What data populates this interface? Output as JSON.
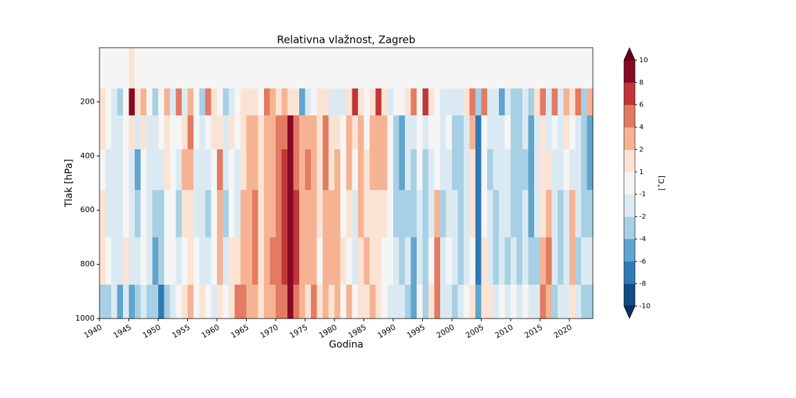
{
  "chart_data": {
    "type": "contourf",
    "title": "Relativna vlažnost, Zagreb",
    "xlabel": "Godina",
    "ylabel": "Tlak [hPa]",
    "colorbar_label": "[˚C]",
    "xlim": [
      1940,
      2024
    ],
    "xticks": [
      1940,
      1945,
      1950,
      1955,
      1960,
      1965,
      1970,
      1975,
      1980,
      1985,
      1990,
      1995,
      2000,
      2005,
      2010,
      2015,
      2020
    ],
    "ylim": [
      1000,
      0
    ],
    "yticks": [
      200,
      400,
      600,
      800,
      1000
    ],
    "levels": [
      -10,
      -8,
      -6,
      -4,
      -2,
      -1,
      1,
      2,
      4,
      6,
      8,
      10
    ],
    "colors": [
      "#134b87",
      "#2f79b5",
      "#5fa5cd",
      "#a7d0e4",
      "#dbeaf2",
      "#f5f5f5",
      "#fbe3d4",
      "#f6b393",
      "#e27b62",
      "#c13639",
      "#870a24"
    ],
    "under_color": "#0a3162",
    "over_color": "#67001f",
    "x": [
      1940,
      1941,
      1942,
      1943,
      1944,
      1945,
      1946,
      1947,
      1948,
      1949,
      1950,
      1951,
      1952,
      1953,
      1954,
      1955,
      1956,
      1957,
      1958,
      1959,
      1960,
      1961,
      1962,
      1963,
      1964,
      1965,
      1966,
      1967,
      1968,
      1969,
      1970,
      1971,
      1972,
      1973,
      1974,
      1975,
      1976,
      1977,
      1978,
      1979,
      1980,
      1981,
      1982,
      1983,
      1984,
      1985,
      1986,
      1987,
      1988,
      1989,
      1990,
      1991,
      1992,
      1993,
      1994,
      1995,
      1996,
      1997,
      1998,
      1999,
      2000,
      2001,
      2002,
      2003,
      2004,
      2005,
      2006,
      2007,
      2008,
      2009,
      2010,
      2011,
      2012,
      2013,
      2014,
      2015,
      2016,
      2017,
      2018,
      2019,
      2020,
      2021,
      2022,
      2023
    ],
    "y": [
      100,
      200,
      300,
      450,
      600,
      800,
      950
    ],
    "z": [
      [
        0,
        1.5,
        1.5,
        0,
        1.5,
        1.5,
        -3
      ],
      [
        0,
        0,
        0,
        -1.5,
        -1.5,
        0,
        -3
      ],
      [
        0,
        -1.5,
        -1.5,
        -1.5,
        -1.5,
        -1.5,
        -1.5
      ],
      [
        0,
        -3,
        -1.5,
        -1.5,
        -1.5,
        -1.5,
        -5
      ],
      [
        0,
        0,
        0,
        0,
        0,
        1.5,
        -1.5
      ],
      [
        1.5,
        9,
        1.5,
        -1.5,
        -1.5,
        -1.5,
        -5
      ],
      [
        0,
        1.5,
        -1.5,
        -5,
        -3,
        -1.5,
        -3
      ],
      [
        0,
        3,
        1.5,
        0,
        0,
        0,
        -1.5
      ],
      [
        0,
        0,
        -1.5,
        -1.5,
        -1.5,
        -1.5,
        -3
      ],
      [
        0,
        -3,
        -1.5,
        -1.5,
        -3,
        -5,
        -3
      ],
      [
        0,
        0,
        0,
        -1.5,
        -3,
        -3,
        -7
      ],
      [
        0,
        3,
        1.5,
        1.5,
        0,
        0,
        -3
      ],
      [
        0,
        -1.5,
        0,
        0,
        0,
        0,
        -1.5
      ],
      [
        0,
        5,
        0,
        -1.5,
        -3,
        -1.5,
        0
      ],
      [
        0,
        -1.5,
        1.5,
        3,
        1.5,
        0,
        1.5
      ],
      [
        0,
        3,
        5,
        3,
        1.5,
        1.5,
        3
      ],
      [
        0,
        0,
        0,
        -1.5,
        -1.5,
        0,
        0
      ],
      [
        0,
        -3,
        -1.5,
        -1.5,
        -1.5,
        -1.5,
        1.5
      ],
      [
        0,
        5,
        0,
        -1.5,
        -3,
        -1.5,
        0
      ],
      [
        0,
        1.5,
        1.5,
        0,
        0,
        0,
        -1.5
      ],
      [
        0,
        0,
        1.5,
        5,
        3,
        3,
        1.5
      ],
      [
        0,
        -3,
        -1.5,
        -1.5,
        -3,
        -1.5,
        0
      ],
      [
        0,
        -1.5,
        1.5,
        0,
        0,
        1.5,
        1.5
      ],
      [
        0,
        0,
        0,
        -1.5,
        -1.5,
        1.5,
        5
      ],
      [
        0,
        1.5,
        1.5,
        1.5,
        3,
        3,
        5
      ],
      [
        0,
        1.5,
        3,
        3,
        3,
        3,
        3
      ],
      [
        0,
        1.5,
        3,
        3,
        5,
        5,
        3
      ],
      [
        0,
        0,
        1.5,
        1.5,
        1.5,
        1.5,
        1.5
      ],
      [
        0,
        5,
        3,
        3,
        3,
        3,
        3
      ],
      [
        0,
        3,
        3,
        3,
        3,
        5,
        3
      ],
      [
        0,
        1.5,
        5,
        5,
        5,
        5,
        5
      ],
      [
        0,
        3,
        5,
        7,
        7,
        7,
        5
      ],
      [
        0,
        1.5,
        9,
        9,
        9,
        9,
        9
      ],
      [
        0,
        1.5,
        5,
        5,
        7,
        7,
        5
      ],
      [
        0,
        -5,
        3,
        3,
        3,
        3,
        3
      ],
      [
        0,
        -1.5,
        3,
        5,
        3,
        3,
        1.5
      ],
      [
        0,
        0,
        3,
        3,
        3,
        3,
        5
      ],
      [
        0,
        1.5,
        1.5,
        1.5,
        1.5,
        0,
        1.5
      ],
      [
        0,
        1.5,
        5,
        5,
        3,
        3,
        3
      ],
      [
        0,
        -1.5,
        1.5,
        1.5,
        3,
        3,
        1.5
      ],
      [
        0,
        -1.5,
        1.5,
        3,
        3,
        3,
        3
      ],
      [
        0,
        -1.5,
        0,
        0,
        0,
        1.5,
        0
      ],
      [
        0,
        1.5,
        3,
        3,
        1.5,
        0,
        3
      ],
      [
        0,
        7,
        1.5,
        0,
        -1.5,
        -1.5,
        0
      ],
      [
        0,
        1.5,
        3,
        3,
        3,
        1.5,
        1.5
      ],
      [
        0,
        0,
        0,
        1.5,
        1.5,
        3,
        1.5
      ],
      [
        0,
        1.5,
        3,
        3,
        1.5,
        1.5,
        3
      ],
      [
        0,
        7,
        3,
        3,
        1.5,
        1.5,
        1.5
      ],
      [
        0,
        1.5,
        3,
        3,
        1.5,
        0,
        0
      ],
      [
        0,
        -1.5,
        0,
        0,
        0,
        0,
        -1.5
      ],
      [
        0,
        0,
        -3,
        -3,
        -3,
        -1.5,
        -1.5
      ],
      [
        0,
        0,
        -5,
        -5,
        -3,
        -3,
        -1.5
      ],
      [
        0,
        1.5,
        -1.5,
        -1.5,
        -3,
        -1.5,
        -3
      ],
      [
        0,
        5,
        -1.5,
        -3,
        -3,
        -5,
        -5
      ],
      [
        0,
        0,
        0,
        0,
        -1.5,
        -1.5,
        0
      ],
      [
        0,
        7,
        -1.5,
        -3,
        -3,
        -3,
        -3
      ],
      [
        0,
        1.5,
        0,
        -1.5,
        -1.5,
        0,
        1.5
      ],
      [
        0,
        0,
        0,
        0,
        3,
        5,
        5
      ],
      [
        0,
        -1.5,
        -1.5,
        -1.5,
        -3,
        -1.5,
        -1.5
      ],
      [
        0,
        -1.5,
        0,
        -1.5,
        -1.5,
        0,
        -1.5
      ],
      [
        0,
        -1.5,
        -3,
        -3,
        -1.5,
        -1.5,
        -3
      ],
      [
        0,
        -1.5,
        -3,
        -3,
        -3,
        -3,
        -1.5
      ],
      [
        0,
        1.5,
        -1.5,
        -1.5,
        -1.5,
        -1.5,
        0
      ],
      [
        0,
        5,
        3,
        1.5,
        1.5,
        0,
        1.5
      ],
      [
        0,
        -3,
        -7,
        -7,
        -7,
        -7,
        -5
      ],
      [
        0,
        5,
        0,
        0,
        0,
        1.5,
        1.5
      ],
      [
        0,
        -1.5,
        -1.5,
        -3,
        -1.5,
        -1.5,
        1.5
      ],
      [
        0,
        -1.5,
        -1.5,
        -1.5,
        -3,
        -3,
        -1.5
      ],
      [
        0,
        -5,
        -1.5,
        -1.5,
        -1.5,
        -1.5,
        0
      ],
      [
        0,
        -1.5,
        0,
        -1.5,
        -1.5,
        -3,
        -1.5
      ],
      [
        0,
        -3,
        -3,
        -3,
        -3,
        -1.5,
        0
      ],
      [
        0,
        -3,
        -3,
        -3,
        -3,
        -3,
        -1.5
      ],
      [
        0,
        -1.5,
        -1.5,
        -3,
        -1.5,
        -1.5,
        0
      ],
      [
        0,
        -3,
        -5,
        -5,
        -5,
        -3,
        -1.5
      ],
      [
        0,
        1.5,
        -1.5,
        -1.5,
        -1.5,
        -3,
        -1.5
      ],
      [
        0,
        5,
        1.5,
        1.5,
        1.5,
        3,
        5
      ],
      [
        0,
        -1.5,
        -1.5,
        1.5,
        3,
        5,
        3
      ],
      [
        0,
        5,
        0,
        -1.5,
        -1.5,
        -1.5,
        -3
      ],
      [
        0,
        -1.5,
        -1.5,
        -1.5,
        -3,
        -3,
        -1.5
      ],
      [
        0,
        3,
        1.5,
        0,
        -1.5,
        -1.5,
        -1.5
      ],
      [
        0,
        1.5,
        0,
        -1.5,
        3,
        3,
        1.5
      ],
      [
        0,
        5,
        -1.5,
        -1.5,
        -1.5,
        -3,
        -1.5
      ],
      [
        0,
        -3,
        -3,
        -3,
        -3,
        -1.5,
        -3
      ],
      [
        0,
        3,
        -5,
        -5,
        -3,
        -1.5,
        -3
      ]
    ]
  }
}
